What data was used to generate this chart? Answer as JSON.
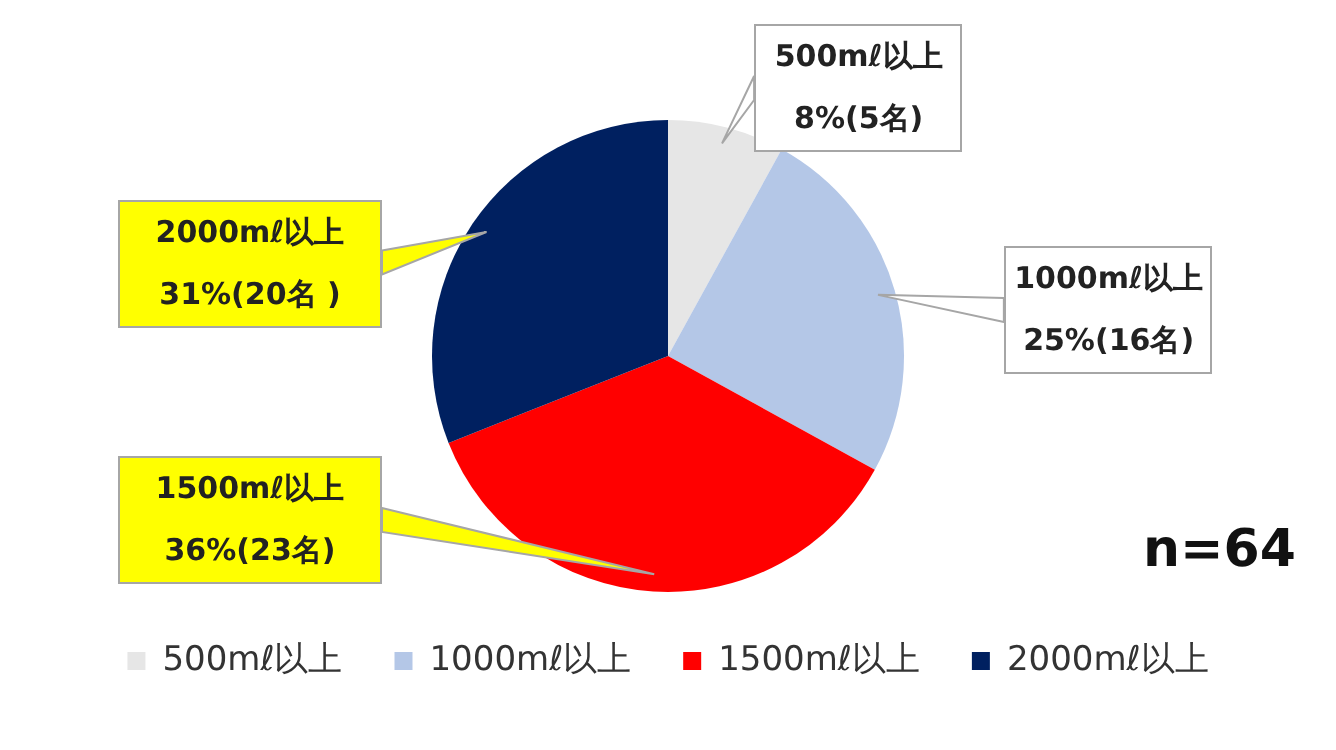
{
  "chart_data": {
    "type": "pie",
    "categories": [
      "500mℓ以上",
      "1000mℓ以上",
      "1500mℓ以上",
      "2000mℓ以上"
    ],
    "values": [
      8,
      25,
      36,
      31
    ],
    "colors": [
      "#e6e6e6",
      "#b4c7e7",
      "#ff0000",
      "#002060"
    ],
    "value_labels": [
      "8%(5名)",
      "25%(16名)",
      "36%(23名)",
      "31%(20名 )"
    ],
    "annotations": [
      "n=64"
    ],
    "legend": "bottom"
  }
}
